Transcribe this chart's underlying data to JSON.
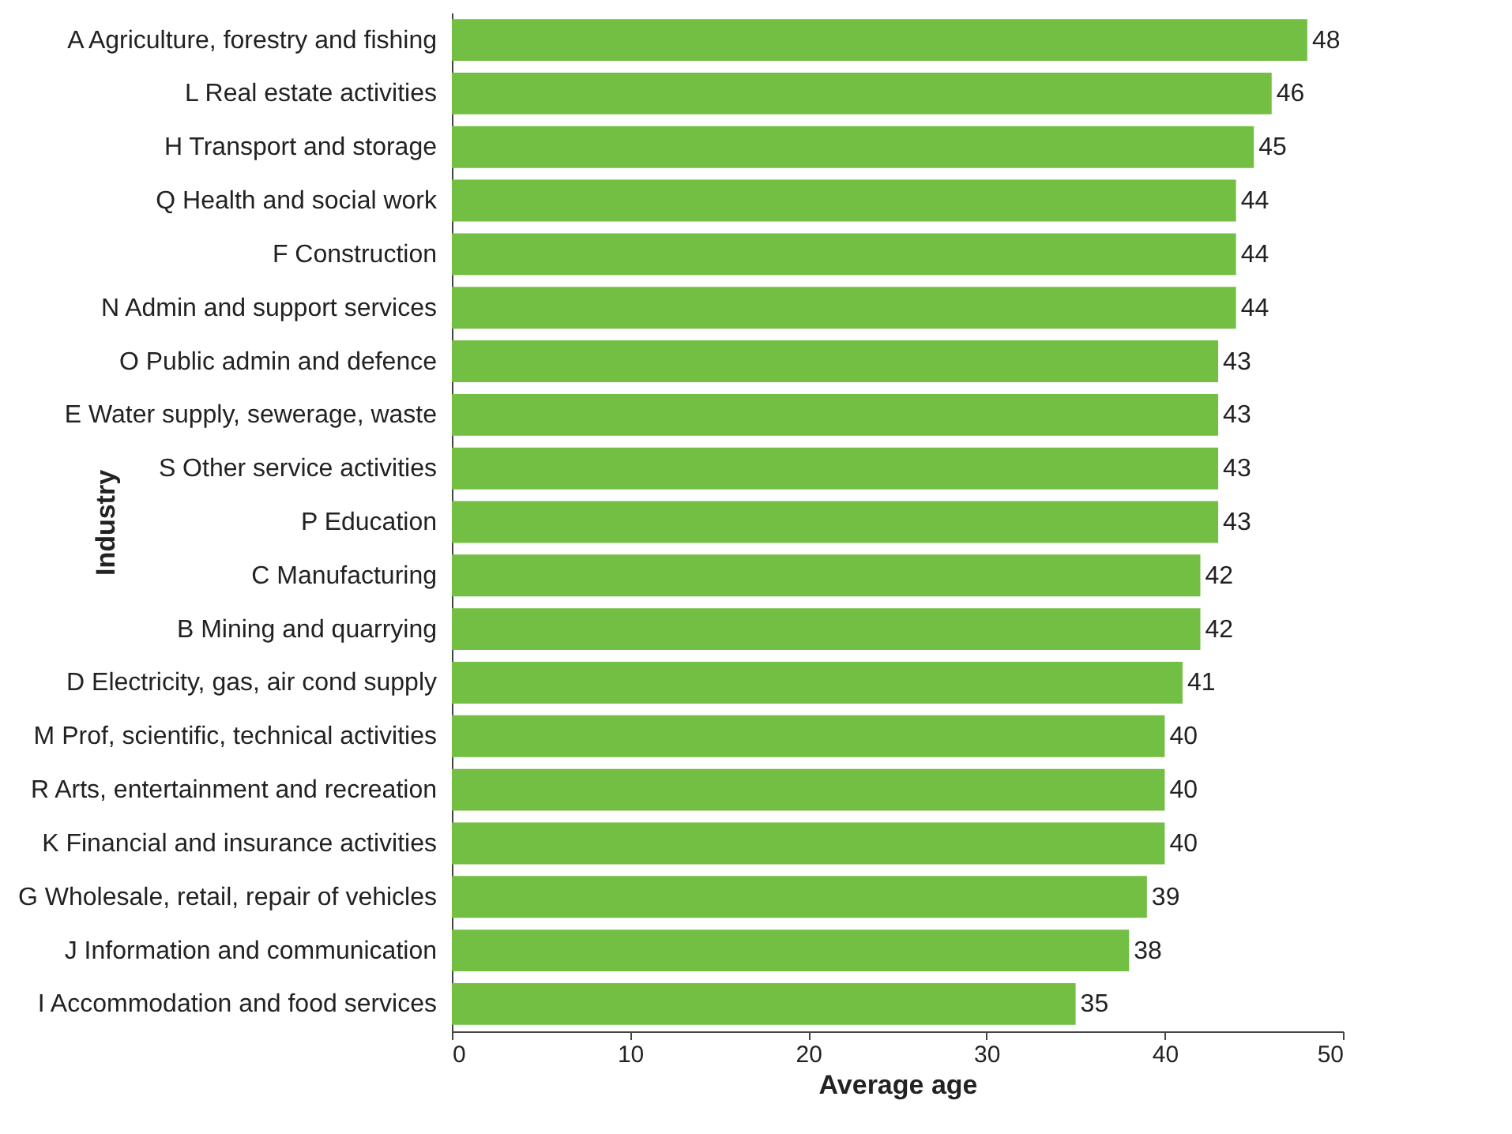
{
  "chart_data": {
    "type": "bar",
    "orientation": "horizontal",
    "xlabel": "Average age",
    "ylabel": "Industry",
    "categories": [
      "A  Agriculture, forestry and fishing",
      "L  Real estate activities",
      "H  Transport and storage",
      "Q  Health and social work",
      "F  Construction",
      "N  Admin and support services",
      "O  Public admin and defence",
      "E  Water supply, sewerage, waste",
      "S  Other service activities",
      "P  Education",
      "C  Manufacturing",
      "B  Mining and quarrying",
      "D  Electricity, gas, air cond supply",
      "M  Prof, scientific, technical activities",
      "R  Arts, entertainment and recreation",
      "K  Financial and insurance activities",
      "G  Wholesale, retail, repair of vehicles",
      "J  Information and communication",
      "I  Accommodation and food services"
    ],
    "values": [
      48,
      46,
      45,
      44,
      44,
      44,
      43,
      43,
      43,
      43,
      42,
      42,
      41,
      40,
      40,
      40,
      39,
      38,
      35
    ],
    "color": "#72bf44",
    "xlim": [
      0,
      50
    ],
    "xticks": [
      0,
      10,
      20,
      30,
      40,
      50
    ],
    "grid": false,
    "data_labels": true
  }
}
